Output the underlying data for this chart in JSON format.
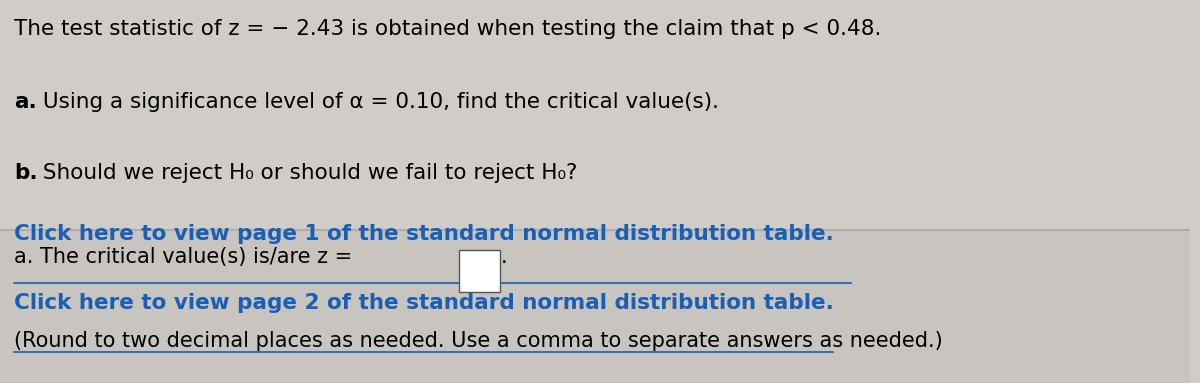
{
  "bg_color": "#d0ccc8",
  "bg_color_bottom": "#c8c4c0",
  "divider_color": "#b0aca8",
  "line1": "The test statistic of z = − 2.43 is obtained when testing the claim that p < 0.48.",
  "line2_bold": "a.",
  "line2_rest": " Using a significance level of α = 0.10, find the critical value(s).",
  "line3_bold": "b.",
  "line3_rest": " Should we reject H₀ or should we fail to reject H₀?",
  "link1": "Click here to view page 1 of the standard normal distribution table.",
  "link2": "Click here to view page 2 of the standard normal distribution table.",
  "bottom_line1_normal": "a. The critical value(s) is/are z =",
  "bottom_line2": "(Round to two decimal places as needed. Use a comma to separate answers as needed.)",
  "link_color": "#1a5fb4",
  "text_color": "#000000",
  "font_size_main": 15.5,
  "font_size_bottom": 15.0
}
